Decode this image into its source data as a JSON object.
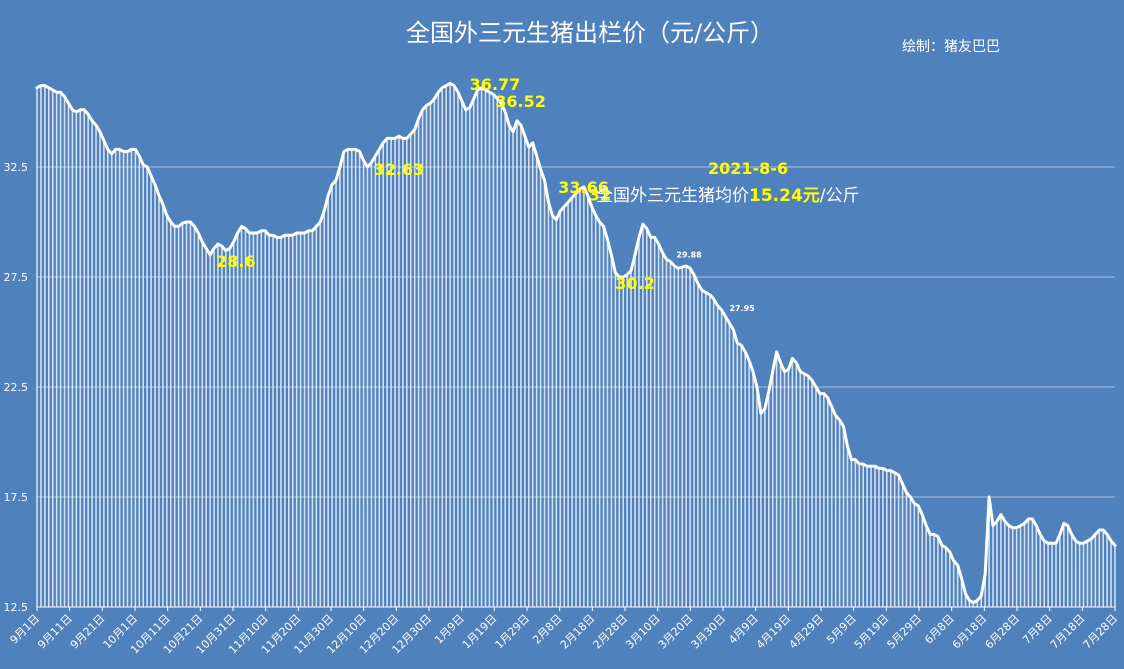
{
  "title": "全国外三元生猪出栏价（元/公斤）",
  "credit": "绘制：猪友巴巴",
  "annotation": {
    "date": "2021-8-6",
    "prefix": "全国外三元生猪均价",
    "value": "15.24元",
    "suffix": "/公斤"
  },
  "colors": {
    "background": "#4f81bd",
    "line": "#ffffff",
    "gridline": "#a8c0e0",
    "highlight": "#ffff00"
  },
  "chart_data": {
    "type": "area",
    "title": "全国外三元生猪出栏价（元/公斤）",
    "xlabel": "",
    "ylabel": "",
    "ylim": [
      12.5,
      37.5
    ],
    "yticks": [
      "12.5",
      "17.5",
      "22.5",
      "27.5",
      "32.5"
    ],
    "grid": true,
    "xticks": [
      "9月1日",
      "9月11日",
      "9月21日",
      "10月1日",
      "10月11日",
      "10月21日",
      "10月31日",
      "11月10日",
      "11月20日",
      "11月30日",
      "12月10日",
      "12月20日",
      "12月30日",
      "1月9日",
      "1月19日",
      "1月29日",
      "2月8日",
      "2月18日",
      "2月28日",
      "3月10日",
      "3月20日",
      "3月30日",
      "4月9日",
      "4月19日",
      "4月29日",
      "5月9日",
      "5月19日",
      "5月29日",
      "6月8日",
      "6月18日",
      "6月28日",
      "7月8日",
      "7月18日",
      "7月28日"
    ],
    "series": [
      {
        "values": [
          36.1,
          36.2,
          36.2,
          36.1,
          36.0,
          35.9,
          35.9,
          35.7,
          35.4,
          35.1,
          35.0,
          35.1,
          35.1,
          34.9,
          34.6,
          34.4,
          34.1,
          33.7,
          33.3,
          33.1,
          33.3,
          33.3,
          33.2,
          33.2,
          33.3,
          33.3,
          33.0,
          32.6,
          32.5,
          32.1,
          31.7,
          31.2,
          30.8,
          30.3,
          30.0,
          29.8,
          29.8,
          29.95,
          30.0,
          30.0,
          29.8,
          29.5,
          29.1,
          28.8,
          28.5,
          28.8,
          29.0,
          28.9,
          28.7,
          28.8,
          29.1,
          29.5,
          29.8,
          29.7,
          29.5,
          29.5,
          29.5,
          29.6,
          29.6,
          29.4,
          29.4,
          29.3,
          29.3,
          29.4,
          29.4,
          29.4,
          29.5,
          29.5,
          29.5,
          29.6,
          29.6,
          29.8,
          30.0,
          30.5,
          31.2,
          31.7,
          31.9,
          32.5,
          33.2,
          33.3,
          33.3,
          33.3,
          33.2,
          32.8,
          32.5,
          32.7,
          33.0,
          33.3,
          33.6,
          33.8,
          33.8,
          33.8,
          33.9,
          33.8,
          33.8,
          34.0,
          34.2,
          34.7,
          35.1,
          35.3,
          35.4,
          35.6,
          35.9,
          36.1,
          36.2,
          36.3,
          36.2,
          35.9,
          35.5,
          35.1,
          35.2,
          35.6,
          36.0,
          36.1,
          36.0,
          35.9,
          35.8,
          35.6,
          35.4,
          35.0,
          34.4,
          34.1,
          34.6,
          34.4,
          33.9,
          33.4,
          33.6,
          33.0,
          32.4,
          31.9,
          30.9,
          30.3,
          30.1,
          30.5,
          30.7,
          30.9,
          31.1,
          31.3,
          31.5,
          31.6,
          31.2,
          30.7,
          30.3,
          30.0,
          29.8,
          29.2,
          28.5,
          27.7,
          27.5,
          27.5,
          27.6,
          27.8,
          28.5,
          29.3,
          29.9,
          29.7,
          29.3,
          29.3,
          29.0,
          28.6,
          28.3,
          28.2,
          28.0,
          27.9,
          27.95,
          28.0,
          27.9,
          27.6,
          27.2,
          26.9,
          26.8,
          26.7,
          26.5,
          26.2,
          26.0,
          25.7,
          25.4,
          25.1,
          24.5,
          24.4,
          24.1,
          23.7,
          23.2,
          22.5,
          21.3,
          21.5,
          22.3,
          23.2,
          24.1,
          23.6,
          23.2,
          23.3,
          23.8,
          23.6,
          23.2,
          23.1,
          23.0,
          22.8,
          22.5,
          22.2,
          22.2,
          22.0,
          21.6,
          21.2,
          21.0,
          20.7,
          19.8,
          19.2,
          19.2,
          19.0,
          19.0,
          18.9,
          18.9,
          18.9,
          18.8,
          18.8,
          18.7,
          18.7,
          18.6,
          18.5,
          18.1,
          17.7,
          17.5,
          17.2,
          17.1,
          16.7,
          16.2,
          15.8,
          15.8,
          15.7,
          15.3,
          15.2,
          15.0,
          14.6,
          14.4,
          13.8,
          13.1,
          12.8,
          12.7,
          12.8,
          13.0,
          14.0,
          17.5,
          16.2,
          16.4,
          16.7,
          16.4,
          16.2,
          16.1,
          16.1,
          16.2,
          16.3,
          16.5,
          16.5,
          16.2,
          15.8,
          15.5,
          15.4,
          15.4,
          15.4,
          15.8,
          16.3,
          16.2,
          15.8,
          15.5,
          15.4,
          15.4,
          15.5,
          15.6,
          15.8,
          16.0,
          16.0,
          15.8,
          15.5,
          15.3
        ]
      }
    ],
    "data_labels": [
      {
        "text": "28.6",
        "index": 44,
        "size": "big"
      },
      {
        "text": "32.63",
        "index": 84,
        "size": "big"
      },
      {
        "text": "36.77",
        "index": 112,
        "size": "big"
      },
      {
        "text": "36.52",
        "index": 118,
        "size": "big"
      },
      {
        "text": "33.66",
        "index": 133,
        "size": "big"
      },
      {
        "text": "32",
        "index": 141,
        "size": "big"
      },
      {
        "text": "30.2",
        "index": 148,
        "size": "big"
      },
      {
        "text": "29.88",
        "index": 161,
        "size": "small"
      },
      {
        "text": "27.95",
        "index": 176,
        "size": "small"
      }
    ]
  }
}
